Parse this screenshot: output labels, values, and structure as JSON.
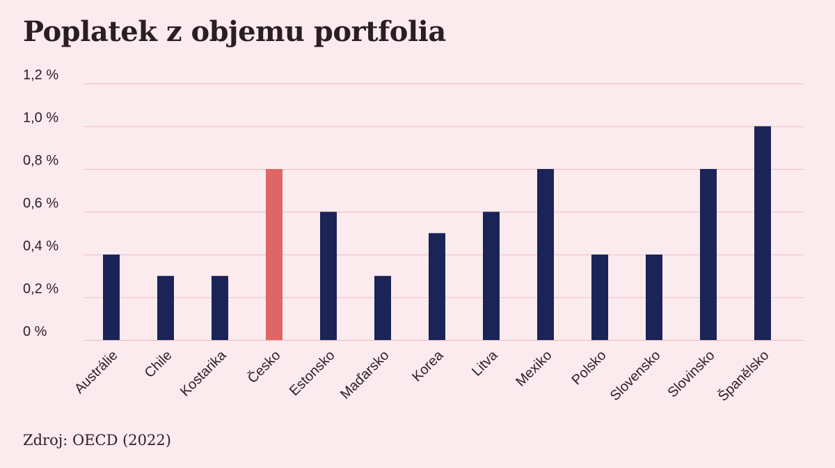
{
  "source": "Zdroj: OECD (2022)",
  "colors": {
    "background": "#fcebee",
    "bar": "#1b2457",
    "highlight": "#e06666",
    "grid": "#e9bcc5",
    "text": "#2a1e23"
  },
  "chart_data": {
    "type": "bar",
    "title": "Poplatek z objemu portfolia",
    "xlabel": "",
    "ylabel": "",
    "ylim": [
      0,
      1.2
    ],
    "y_ticks": [
      {
        "value": 0,
        "label": "0 %"
      },
      {
        "value": 0.2,
        "label": "0,2 %"
      },
      {
        "value": 0.4,
        "label": "0,4 %"
      },
      {
        "value": 0.6,
        "label": "0,6 %"
      },
      {
        "value": 0.8,
        "label": "0,8 %"
      },
      {
        "value": 1.0,
        "label": "1,0 %"
      },
      {
        "value": 1.2,
        "label": "1,2 %"
      }
    ],
    "grid": true,
    "legend": "none",
    "categories": [
      "Austrálie",
      "Chile",
      "Kostarika",
      "Česko",
      "Estonsko",
      "Maďarsko",
      "Korea",
      "Litva",
      "Mexiko",
      "Polsko",
      "Slovensko",
      "Slovinsko",
      "Španělsko"
    ],
    "values": [
      0.4,
      0.3,
      0.3,
      0.8,
      0.6,
      0.3,
      0.5,
      0.6,
      0.8,
      0.4,
      0.4,
      0.8,
      1.0
    ],
    "highlight_category": "Česko"
  }
}
